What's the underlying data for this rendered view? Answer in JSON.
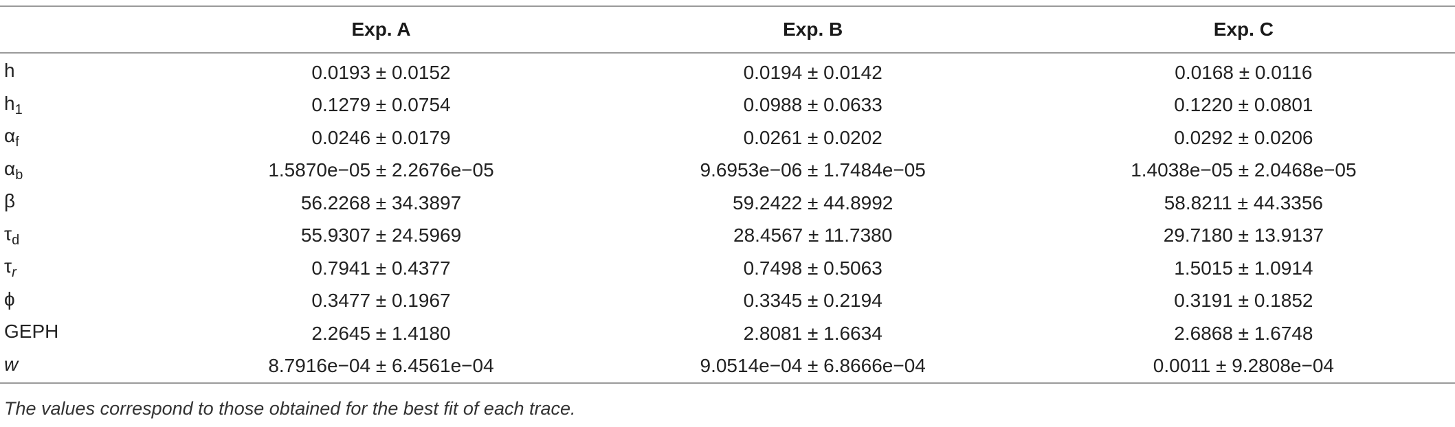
{
  "table": {
    "headers": [
      "",
      "Exp. A",
      "Exp. B",
      "Exp. C"
    ],
    "rows": [
      {
        "param": {
          "base": "h",
          "sub": ""
        },
        "values": [
          "0.0193 ± 0.0152",
          "0.0194 ± 0.0142",
          "0.0168 ± 0.0116"
        ]
      },
      {
        "param": {
          "base": "h",
          "sub": "1"
        },
        "values": [
          "0.1279 ± 0.0754",
          "0.0988 ± 0.0633",
          "0.1220 ± 0.0801"
        ]
      },
      {
        "param": {
          "base": "α",
          "sub": "f"
        },
        "values": [
          "0.0246 ± 0.0179",
          "0.0261 ± 0.0202",
          "0.0292 ± 0.0206"
        ]
      },
      {
        "param": {
          "base": "α",
          "sub": "b"
        },
        "values": [
          "1.5870e−05 ± 2.2676e−05",
          "9.6953e−06 ± 1.7484e−05",
          "1.4038e−05 ± 2.0468e−05"
        ]
      },
      {
        "param": {
          "base": "β",
          "sub": ""
        },
        "values": [
          "56.2268 ± 34.3897",
          "59.2422 ± 44.8992",
          "58.8211 ± 44.3356"
        ]
      },
      {
        "param": {
          "base": "τ",
          "sub": "d"
        },
        "values": [
          "55.9307 ± 24.5969",
          "28.4567 ± 11.7380",
          "29.7180 ± 13.9137"
        ]
      },
      {
        "param": {
          "base": "τ",
          "sub": "r"
        },
        "values": [
          "0.7941 ± 0.4377",
          "0.7498 ± 0.5063",
          "1.5015 ± 1.0914"
        ]
      },
      {
        "param": {
          "base": "ϕ",
          "sub": ""
        },
        "values": [
          "0.3477 ± 0.1967",
          "0.3345 ± 0.2194",
          "0.3191 ± 0.1852"
        ]
      },
      {
        "param": {
          "base": "GEPH",
          "sub": ""
        },
        "values": [
          "2.2645 ± 1.4180",
          "2.8081 ± 1.6634",
          "2.6868 ± 1.6748"
        ]
      },
      {
        "param": {
          "base": "w",
          "sub": ""
        },
        "values": [
          "8.7916e−04 ± 6.4561e−04",
          "9.0514e−04 ± 6.8666e−04",
          "0.0011 ± 9.2808e−04"
        ]
      }
    ]
  },
  "footnote": "The values correspond to those obtained for the best fit of each trace."
}
